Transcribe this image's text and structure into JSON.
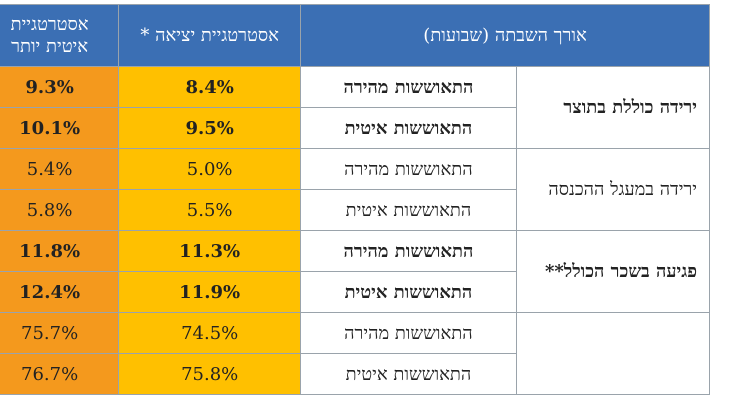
{
  "headers": {
    "duration": "אורך השבתה (שבועות)",
    "exit_strategy": "אסטרטגיית יציאה *",
    "slow_strategy_line1": "אסטרטגיית",
    "slow_strategy_line2": "איטית יותר"
  },
  "groups": [
    {
      "category": "ירידה כוללת בתוצר",
      "rows": [
        {
          "label": "התאוששות מהירה",
          "exit": "8.4%",
          "slow": "9.3%",
          "bold": true
        },
        {
          "label": "התאוששות איטית",
          "exit": "9.5%",
          "slow": "10.1%",
          "bold": true
        }
      ]
    },
    {
      "category": "ירידה במעגל ההכנסה",
      "rows": [
        {
          "label": "התאוששות מהירה",
          "exit": "5.0%",
          "slow": "5.4%",
          "bold": false
        },
        {
          "label": "התאוששות איטית",
          "exit": "5.5%",
          "slow": "5.8%",
          "bold": false
        }
      ]
    },
    {
      "category": "פגיעה בשכר הכולל**",
      "rows": [
        {
          "label": "התאוששות מהירה",
          "exit": "11.3%",
          "slow": "11.8%",
          "bold": true
        },
        {
          "label": "התאוששות איטית",
          "exit": "11.9%",
          "slow": "12.4%",
          "bold": true
        }
      ]
    },
    {
      "category": "",
      "rows": [
        {
          "label": "התאוששות מהירה",
          "exit": "74.5%",
          "slow": "75.7%",
          "bold": false
        },
        {
          "label": "התאוששות איטית",
          "exit": "75.8%",
          "slow": "76.7%",
          "bold": false
        }
      ]
    }
  ]
}
